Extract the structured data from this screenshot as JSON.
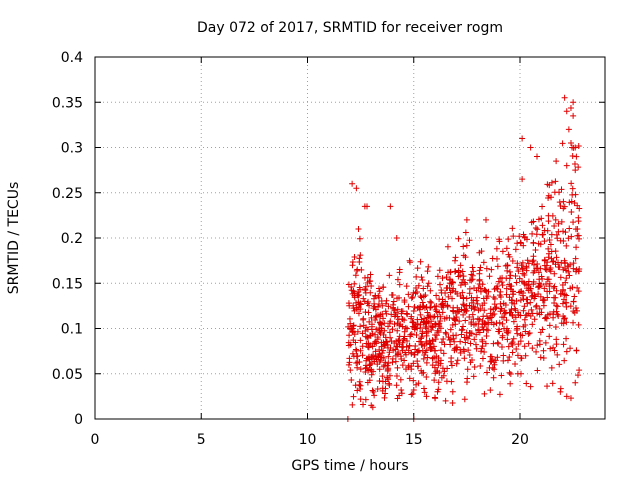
{
  "chart_data": {
    "type": "scatter",
    "title": "Day 072 of 2017, SRMTID for receiver rogm",
    "xlabel": "GPS time / hours",
    "ylabel": "SRMTID / TECUs",
    "xlim": [
      0,
      24
    ],
    "ylim": [
      0,
      0.4
    ],
    "xticks": [
      "0",
      "5",
      "10",
      "15",
      "20"
    ],
    "yticks": [
      "0",
      "0.05",
      "0.1",
      "0.15",
      "0.2",
      "0.25",
      "0.3",
      "0.35",
      "0.4"
    ],
    "grid": true,
    "marker": "+",
    "color": "#e00000",
    "data_range_x": [
      11.9,
      22.8
    ],
    "generator": {
      "count": 1300,
      "seed": 72,
      "envelope": [
        [
          11.9,
          0.1,
          0.04
        ],
        [
          12.5,
          0.11,
          0.05
        ],
        [
          13.0,
          0.09,
          0.04
        ],
        [
          14.0,
          0.09,
          0.035
        ],
        [
          15.0,
          0.1,
          0.04
        ],
        [
          16.0,
          0.1,
          0.04
        ],
        [
          17.0,
          0.11,
          0.045
        ],
        [
          18.0,
          0.12,
          0.04
        ],
        [
          19.0,
          0.12,
          0.045
        ],
        [
          20.0,
          0.13,
          0.045
        ],
        [
          21.0,
          0.15,
          0.05
        ],
        [
          22.0,
          0.16,
          0.07
        ],
        [
          22.8,
          0.2,
          0.08
        ]
      ]
    },
    "points": [
      [
        11.9,
        0.0
      ],
      [
        12.0,
        0.1
      ],
      [
        12.1,
        0.26
      ],
      [
        12.3,
        0.255
      ],
      [
        12.4,
        0.21
      ],
      [
        12.7,
        0.235
      ],
      [
        12.8,
        0.235
      ],
      [
        13.9,
        0.235
      ],
      [
        13.0,
        0.015
      ],
      [
        13.1,
        0.03
      ],
      [
        15.0,
        0.0
      ],
      [
        15.6,
        0.025
      ],
      [
        16.5,
        0.02
      ],
      [
        17.5,
        0.22
      ],
      [
        18.4,
        0.22
      ],
      [
        20.1,
        0.31
      ],
      [
        20.1,
        0.265
      ],
      [
        20.5,
        0.3
      ],
      [
        20.8,
        0.29
      ],
      [
        21.7,
        0.285
      ],
      [
        22.1,
        0.355
      ],
      [
        22.2,
        0.34
      ],
      [
        22.3,
        0.32
      ],
      [
        22.5,
        0.35
      ],
      [
        22.5,
        0.335
      ],
      [
        22.6,
        0.3
      ],
      [
        22.4,
        0.305
      ],
      [
        22.2,
        0.28
      ],
      [
        22.6,
        0.275
      ],
      [
        22.7,
        0.21
      ],
      [
        21.9,
        0.03
      ],
      [
        22.2,
        0.025
      ],
      [
        22.6,
        0.04
      ],
      [
        19.9,
        0.05
      ],
      [
        18.8,
        0.06
      ],
      [
        14.2,
        0.2
      ]
    ]
  }
}
